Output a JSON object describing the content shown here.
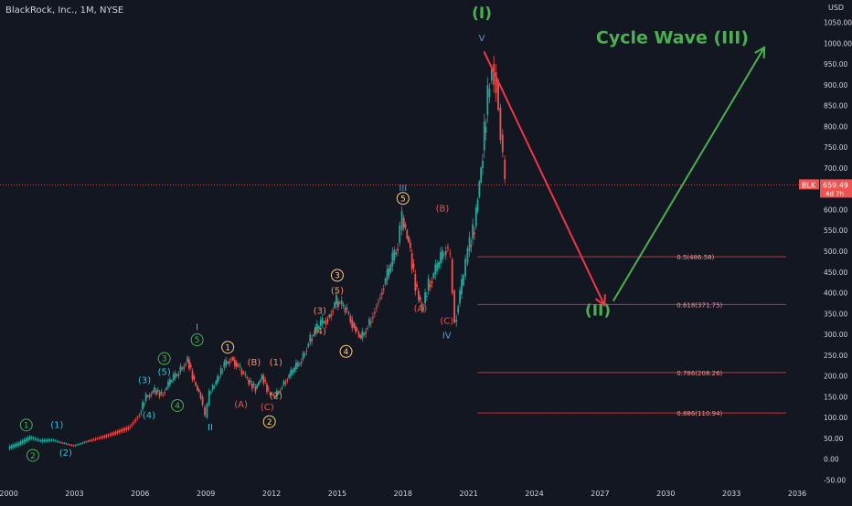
{
  "header": {
    "symbol_title": "BlackRock, Inc., 1M, NYSE"
  },
  "price_axis": {
    "currency": "USD",
    "ticks": [
      "1050.00",
      "1000.00",
      "950.00",
      "900.00",
      "850.00",
      "800.00",
      "750.00",
      "700.00",
      "650.00",
      "600.00",
      "550.00",
      "500.00",
      "450.00",
      "400.00",
      "350.00",
      "300.00",
      "250.00",
      "200.00",
      "150.00",
      "100.00",
      "50.00",
      "0.00",
      "-50.00"
    ],
    "tick_values": [
      1050,
      1000,
      950,
      900,
      850,
      800,
      750,
      700,
      650,
      600,
      550,
      500,
      450,
      400,
      350,
      300,
      250,
      200,
      150,
      100,
      50,
      0,
      -50
    ],
    "last_price_ticker": "BLK",
    "last_price": "659.49",
    "last_price_value": 659.49,
    "countdown": "4d 7h"
  },
  "time_axis": {
    "ticks": [
      "2000",
      "2003",
      "2006",
      "2009",
      "2012",
      "2015",
      "2018",
      "2021",
      "2024",
      "2027",
      "2030",
      "2033",
      "2036"
    ],
    "tick_values": [
      2000,
      2003,
      2006,
      2009,
      2012,
      2015,
      2018,
      2021,
      2024,
      2027,
      2030,
      2033,
      2036
    ]
  },
  "colors": {
    "background": "#131722",
    "text": "#d1d4dc",
    "up": "#26a69a",
    "down": "#ef5350",
    "green_label": "#4caf50",
    "teal_label": "#26c6da",
    "orange_label": "#ff8a65",
    "red_label": "#ef5350",
    "yellow_label": "#ffcc80",
    "blue_label": "#5b9bd5",
    "fib_line": "#e53935",
    "fib_text": "#ef9a9a",
    "arrow_down": "#f23645",
    "arrow_up": "#4caf50"
  },
  "chart_data": {
    "type": "line",
    "title": "BlackRock, Inc., 1M, NYSE",
    "xlabel": "",
    "ylabel": "USD",
    "xlim": [
      2000,
      2037
    ],
    "ylim": [
      -60,
      1060
    ],
    "grid": false,
    "series": [
      {
        "x": [
          2000.0,
          2000.5,
          2001.0,
          2001.5,
          2002.0,
          2002.5,
          2003.0,
          2003.5,
          2004.0,
          2004.5,
          2005.0,
          2005.5,
          2006.0,
          2006.3,
          2006.7,
          2007.0,
          2007.4,
          2007.8,
          2008.2,
          2008.5,
          2008.8,
          2009.0,
          2009.2,
          2009.5,
          2009.8,
          2010.2,
          2010.6,
          2011.0,
          2011.3,
          2011.6,
          2011.9,
          2012.2,
          2012.6,
          2013.0,
          2013.4,
          2013.8,
          2014.2,
          2014.6,
          2015.0,
          2015.4,
          2015.8,
          2016.1,
          2016.5,
          2017.0,
          2017.4,
          2017.8,
          2018.0,
          2018.3,
          2018.6,
          2018.9,
          2019.2,
          2019.6,
          2020.0,
          2020.2,
          2020.4,
          2020.8,
          2021.0,
          2021.3,
          2021.6,
          2021.9,
          2022.1,
          2022.3,
          2022.5,
          2022.7
        ],
        "values": [
          25,
          35,
          50,
          42,
          45,
          38,
          32,
          42,
          50,
          58,
          68,
          78,
          110,
          150,
          165,
          155,
          185,
          210,
          240,
          185,
          150,
          100,
          160,
          185,
          220,
          245,
          215,
          185,
          170,
          200,
          160,
          150,
          185,
          210,
          240,
          290,
          320,
          340,
          380,
          360,
          320,
          290,
          330,
          400,
          450,
          520,
          580,
          520,
          420,
          360,
          420,
          460,
          510,
          480,
          330,
          440,
          500,
          560,
          700,
          870,
          950,
          910,
          780,
          659.49
        ]
      }
    ],
    "annotations": {
      "cycle_wave_I": {
        "text": "(I)",
        "x": 2021.6,
        "y": 1060
      },
      "wave_V": {
        "text": "V",
        "x": 2021.6,
        "y": 1005
      },
      "cycle_wave_III": {
        "text": "Cycle Wave (III)",
        "x": 2030.3,
        "y": 1000
      },
      "cycle_wave_II": {
        "text": "(II)",
        "x": 2026.9,
        "y": 345
      },
      "teal_III": {
        "text": "III",
        "x": 2018.0,
        "y": 645
      },
      "red_B": {
        "text": "(B)",
        "x": 2019.8,
        "y": 595
      },
      "red_A_2018": {
        "text": "(A)",
        "x": 2018.8,
        "y": 355
      },
      "red_C_2020": {
        "text": "(C)",
        "x": 2020.0,
        "y": 325
      },
      "blue_IV": {
        "text": "IV",
        "x": 2020.0,
        "y": 290
      },
      "yellow_5_2018": {
        "text": "5",
        "x": 2018.0,
        "y": 620
      },
      "yellow_3_2015": {
        "text": "3",
        "x": 2015.0,
        "y": 435
      },
      "orange_5_2015": {
        "text": "(5)",
        "x": 2015.0,
        "y": 398
      },
      "orange_3_2014": {
        "text": "(3)",
        "x": 2014.2,
        "y": 350
      },
      "orange_4_2015": {
        "text": "(4)",
        "x": 2014.2,
        "y": 300
      },
      "yellow_4_2015": {
        "text": "4",
        "x": 2015.4,
        "y": 252
      },
      "yellow_1_2010": {
        "text": "1",
        "x": 2010.0,
        "y": 262
      },
      "orange_B_2011": {
        "text": "(B)",
        "x": 2011.2,
        "y": 225
      },
      "orange_1_2012": {
        "text": "(1)",
        "x": 2012.2,
        "y": 225
      },
      "orange_2_2012": {
        "text": "(2)",
        "x": 2012.2,
        "y": 145
      },
      "red_A_2010": {
        "text": "(A)",
        "x": 2010.6,
        "y": 125
      },
      "red_C_2011": {
        "text": "(C)",
        "x": 2011.8,
        "y": 118
      },
      "yellow_2_2011": {
        "text": "2",
        "x": 2011.9,
        "y": 83
      },
      "teal_I_2008": {
        "text": "I",
        "x": 2008.6,
        "y": 310
      },
      "green_5_2008": {
        "text": "5",
        "x": 2008.6,
        "y": 280
      },
      "green_3_2007": {
        "text": "3",
        "x": 2007.1,
        "y": 235
      },
      "teal_5_2007": {
        "text": "(5)",
        "x": 2007.1,
        "y": 202
      },
      "teal_3_2006": {
        "text": "(3)",
        "x": 2006.2,
        "y": 183
      },
      "teal_4_2006": {
        "text": "(4)",
        "x": 2006.4,
        "y": 98
      },
      "green_4_2007": {
        "text": "4",
        "x": 2007.7,
        "y": 122
      },
      "teal_II_2009": {
        "text": "II",
        "x": 2009.2,
        "y": 70
      },
      "green_1_2000": {
        "text": "1",
        "x": 2000.8,
        "y": 75
      },
      "green_2_2001": {
        "text": "2",
        "x": 2001.1,
        "y": 2
      },
      "teal_1_2002": {
        "text": "(1)",
        "x": 2002.2,
        "y": 75
      },
      "teal_2_2002": {
        "text": "(2)",
        "x": 2002.6,
        "y": 8
      }
    },
    "fib_levels": [
      {
        "label": "0.5(486.58)",
        "value": 486.58
      },
      {
        "label": "0.618(371.75)",
        "value": 371.75
      },
      {
        "label": "0.786(208.26)",
        "value": 208.26
      },
      {
        "label": "0.886(110.94)",
        "value": 110.94
      }
    ],
    "fib_x_range": [
      2021.4,
      2035.5
    ],
    "arrows": [
      {
        "name": "forecast-down-arrow",
        "from": [
          2021.7,
          980
        ],
        "to": [
          2027.2,
          370
        ]
      },
      {
        "name": "forecast-up-arrow",
        "from": [
          2027.6,
          380
        ],
        "to": [
          2034.5,
          990
        ]
      }
    ]
  }
}
